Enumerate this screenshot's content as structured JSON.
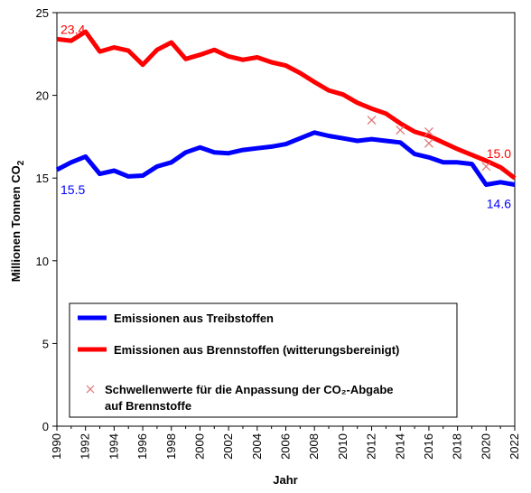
{
  "chart_data": {
    "type": "line",
    "title": "",
    "xlabel": "Jahr",
    "ylabel_main": "Millionen Tonnen CO",
    "ylabel_sub": "2",
    "xlim": [
      1990,
      2022
    ],
    "ylim": [
      0,
      25
    ],
    "xticks": [
      "1990",
      "1992",
      "1994",
      "1996",
      "1998",
      "2000",
      "2002",
      "2004",
      "2006",
      "2008",
      "2010",
      "2012",
      "2014",
      "2016",
      "2018",
      "2020",
      "2022"
    ],
    "yticks": [
      "0",
      "5",
      "10",
      "15",
      "20",
      "25"
    ],
    "grid": false,
    "legend_position": "bottom-left",
    "series": [
      {
        "name": "Emissionen aus Treibstoffen",
        "color": "#0000ff",
        "x": [
          1990,
          1991,
          1992,
          1993,
          1994,
          1995,
          1996,
          1997,
          1998,
          1999,
          2000,
          2001,
          2002,
          2003,
          2004,
          2005,
          2006,
          2007,
          2008,
          2009,
          2010,
          2011,
          2012,
          2013,
          2014,
          2015,
          2016,
          2017,
          2018,
          2019,
          2020,
          2021,
          2022
        ],
        "values": [
          15.5,
          15.95,
          16.3,
          15.25,
          15.45,
          15.1,
          15.15,
          15.7,
          15.95,
          16.55,
          16.85,
          16.55,
          16.5,
          16.7,
          16.8,
          16.9,
          17.05,
          17.4,
          17.75,
          17.55,
          17.4,
          17.25,
          17.35,
          17.25,
          17.15,
          16.45,
          16.25,
          15.95,
          15.95,
          15.85,
          14.6,
          14.75,
          14.6
        ]
      },
      {
        "name": "Emissionen aus Brennstoffen (witterungsbereinigt)",
        "color": "#ff0000",
        "x": [
          1990,
          1991,
          1992,
          1993,
          1994,
          1995,
          1996,
          1997,
          1998,
          1999,
          2000,
          2001,
          2002,
          2003,
          2004,
          2005,
          2006,
          2007,
          2008,
          2009,
          2010,
          2011,
          2012,
          2013,
          2014,
          2015,
          2016,
          2017,
          2018,
          2019,
          2020,
          2021,
          2022
        ],
        "values": [
          23.4,
          23.3,
          23.85,
          22.65,
          22.9,
          22.7,
          21.85,
          22.75,
          23.2,
          22.2,
          22.45,
          22.75,
          22.35,
          22.15,
          22.3,
          22.0,
          21.8,
          21.35,
          20.8,
          20.3,
          20.05,
          19.55,
          19.2,
          18.9,
          18.3,
          17.8,
          17.55,
          17.15,
          16.75,
          16.4,
          16.05,
          15.65,
          15.0
        ]
      },
      {
        "name": "Schwellenwerte für die Anpassung der CO₂-Abgabe auf Brennstoffe",
        "color": "#e07070",
        "marker": "x",
        "x": [
          2012,
          2014,
          2016,
          2016,
          2020
        ],
        "values": [
          18.5,
          17.9,
          17.1,
          17.8,
          15.7
        ]
      }
    ],
    "annotations": [
      {
        "text": "23.4",
        "series": 1,
        "x": 1990,
        "color": "#ff0000"
      },
      {
        "text": "15.5",
        "series": 0,
        "x": 1990,
        "color": "#0000ff"
      },
      {
        "text": "15.0",
        "series": 1,
        "x": 2022,
        "color": "#ff0000"
      },
      {
        "text": "14.6",
        "series": 0,
        "x": 2022,
        "color": "#0000ff"
      }
    ],
    "legend": {
      "entries": [
        {
          "label": "Emissionen aus Treibstoffen"
        },
        {
          "label": "Emissionen aus Brennstoffen (witterungsbereinigt)"
        },
        {
          "label_line1": "Schwellenwerte für die Anpassung der CO₂-Abgabe",
          "label_line2": "auf Brennstoffe"
        }
      ]
    }
  }
}
